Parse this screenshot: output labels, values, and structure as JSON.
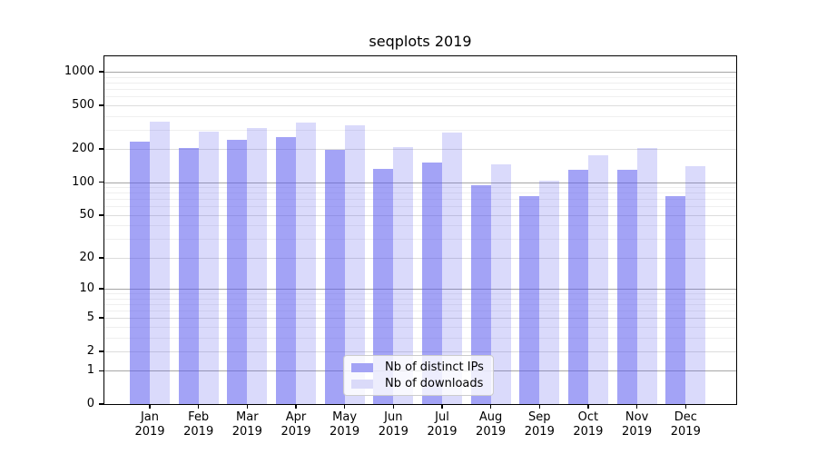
{
  "title": "seqplots 2019",
  "legend": {
    "items": [
      {
        "label": "Nb of distinct IPs",
        "color": "#a3a3f5"
      },
      {
        "label": "Nb of downloads",
        "color": "#dadaf9"
      }
    ]
  },
  "axes": {
    "y_tick_labels": [
      "0",
      "1",
      "2",
      "5",
      "10",
      "20",
      "50",
      "100",
      "200",
      "500",
      "1000"
    ],
    "y_tick_values": [
      0,
      1,
      2,
      5,
      10,
      20,
      50,
      100,
      200,
      500,
      1000
    ],
    "y_minor_values": [
      3,
      4,
      6,
      7,
      8,
      9,
      30,
      40,
      60,
      70,
      80,
      90,
      300,
      400,
      600,
      700,
      800,
      900
    ],
    "x_ticks": [
      {
        "month": "Jan",
        "year": "2019"
      },
      {
        "month": "Feb",
        "year": "2019"
      },
      {
        "month": "Mar",
        "year": "2019"
      },
      {
        "month": "Apr",
        "year": "2019"
      },
      {
        "month": "May",
        "year": "2019"
      },
      {
        "month": "Jun",
        "year": "2019"
      },
      {
        "month": "Jul",
        "year": "2019"
      },
      {
        "month": "Aug",
        "year": "2019"
      },
      {
        "month": "Sep",
        "year": "2019"
      },
      {
        "month": "Oct",
        "year": "2019"
      },
      {
        "month": "Nov",
        "year": "2019"
      },
      {
        "month": "Dec",
        "year": "2019"
      }
    ]
  },
  "chart_data": {
    "type": "bar",
    "title": "seqplots 2019",
    "categories": [
      "Jan 2019",
      "Feb 2019",
      "Mar 2019",
      "Apr 2019",
      "May 2019",
      "Jun 2019",
      "Jul 2019",
      "Aug 2019",
      "Sep 2019",
      "Oct 2019",
      "Nov 2019",
      "Dec 2019"
    ],
    "series": [
      {
        "name": "Nb of distinct IPs",
        "color": "rgba(88,88,238,0.55)",
        "values": [
          235,
          205,
          245,
          258,
          198,
          131,
          151,
          94,
          74,
          130,
          130,
          75
        ]
      },
      {
        "name": "Nb of downloads",
        "color": "rgba(88,88,238,0.22)",
        "values": [
          355,
          290,
          310,
          345,
          328,
          208,
          280,
          146,
          104,
          177,
          206,
          140
        ]
      }
    ],
    "xlabel": "",
    "ylabel": "",
    "yscale": "log1p",
    "ylim": [
      0,
      1380
    ],
    "y_ticks": [
      0,
      1,
      2,
      5,
      10,
      20,
      50,
      100,
      200,
      500,
      1000
    ],
    "grid": true,
    "legend_position": "lower center"
  }
}
